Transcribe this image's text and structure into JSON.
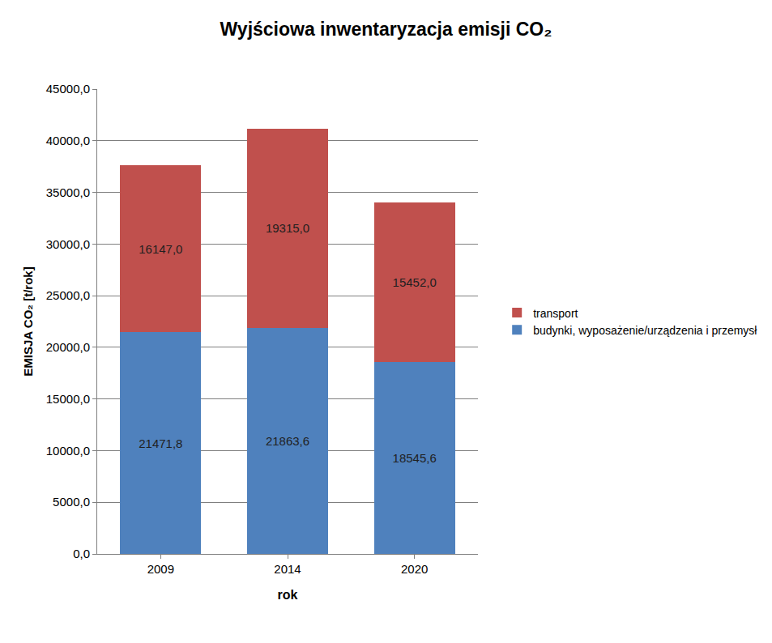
{
  "chart_data": {
    "type": "bar",
    "title": "Wyjściowa inwentaryzacja emisji CO₂",
    "x_label": "rok",
    "y_label": "EMISJA CO₂ [t/rok]",
    "categories": [
      "2009",
      "2014",
      "2020"
    ],
    "series": [
      {
        "name": "budynki, wyposażenie/urządzenia i przemysł",
        "color": "#4f81bd",
        "values": [
          21471.8,
          21863.6,
          18545.6
        ],
        "value_labels": [
          "21471,8",
          "21863,6",
          "18545,6"
        ]
      },
      {
        "name": "transport",
        "color": "#c0504d",
        "values": [
          16147.0,
          19315.0,
          15452.0
        ],
        "value_labels": [
          "16147,0",
          "19315,0",
          "15452,0"
        ]
      }
    ],
    "stacked": true,
    "data_labels": true,
    "grid": true,
    "legend": "right",
    "ylim": [
      0,
      45000
    ],
    "yticks": [
      {
        "value": 0,
        "label": "0,0"
      },
      {
        "value": 5000,
        "label": "5000,0"
      },
      {
        "value": 10000,
        "label": "10000,0"
      },
      {
        "value": 15000,
        "label": "15000,0"
      },
      {
        "value": 20000,
        "label": "20000,0"
      },
      {
        "value": 25000,
        "label": "25000,0"
      },
      {
        "value": 30000,
        "label": "30000,0"
      },
      {
        "value": 35000,
        "label": "35000,0"
      },
      {
        "value": 40000,
        "label": "40000,0"
      },
      {
        "value": 45000,
        "label": "45000,0"
      }
    ]
  }
}
